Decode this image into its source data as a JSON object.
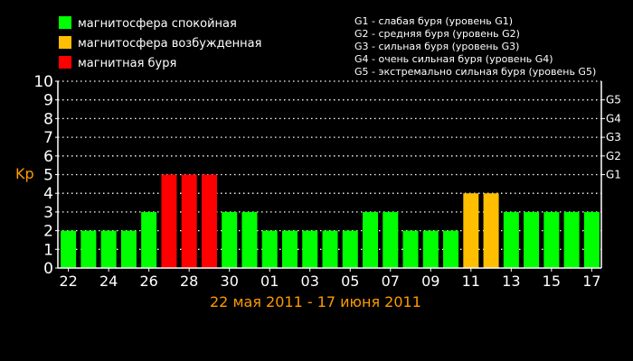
{
  "chart_data": {
    "type": "bar",
    "ylabel": "Kp",
    "ylim": [
      0,
      10
    ],
    "yticks": [
      0,
      1,
      2,
      3,
      4,
      5,
      6,
      7,
      8,
      9,
      10
    ],
    "grid": true,
    "date_range_label": "22 мая 2011 - 17 июня 2011",
    "x_tick_labels": [
      "22",
      "24",
      "26",
      "28",
      "30",
      "01",
      "03",
      "05",
      "07",
      "09",
      "11",
      "13",
      "15",
      "17"
    ],
    "right_axis_ticks": [
      {
        "label": "G1",
        "value": 5
      },
      {
        "label": "G2",
        "value": 6
      },
      {
        "label": "G3",
        "value": 7
      },
      {
        "label": "G4",
        "value": 8
      },
      {
        "label": "G5",
        "value": 9
      }
    ],
    "legend": [
      {
        "label": "магнитосфера спокойная",
        "color": "#00ff00"
      },
      {
        "label": "магнитосфера возбужденная",
        "color": "#ffbf00"
      },
      {
        "label": "магнитная буря",
        "color": "#ff0000"
      }
    ],
    "storm_levels": [
      "G1 - слабая буря (уровень G1)",
      "G2 - средняя буря (уровень G2)",
      "G3 - сильная буря (уровень G3)",
      "G4 - очень сильная буря (уровень G4)",
      "G5 - экстремально сильная буря (уровень G5)"
    ],
    "colors": {
      "quiet": "#00ff00",
      "active": "#ffbf00",
      "storm": "#ff0000",
      "axis": "#ffffff",
      "label": "#ff9900"
    },
    "values": [
      2,
      2,
      2,
      2,
      3,
      5,
      5,
      5,
      3,
      3,
      2,
      2,
      2,
      2,
      2,
      3,
      3,
      2,
      2,
      2,
      4,
      4,
      3,
      3,
      3,
      3,
      3
    ],
    "statuses": [
      "quiet",
      "quiet",
      "quiet",
      "quiet",
      "quiet",
      "storm",
      "storm",
      "storm",
      "quiet",
      "quiet",
      "quiet",
      "quiet",
      "quiet",
      "quiet",
      "quiet",
      "quiet",
      "quiet",
      "quiet",
      "quiet",
      "quiet",
      "active",
      "active",
      "quiet",
      "quiet",
      "quiet",
      "quiet",
      "quiet"
    ]
  }
}
